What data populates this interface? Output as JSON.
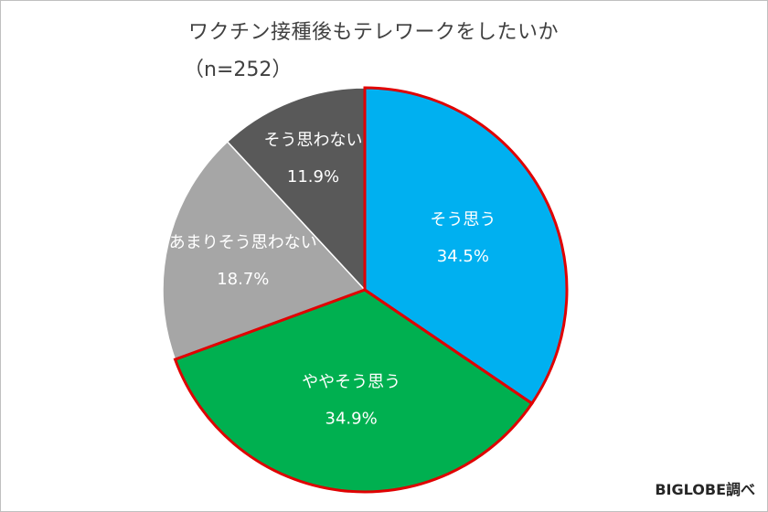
{
  "chart_data": {
    "type": "pie",
    "title": "ワクチン接種後もテレワークをしたいか",
    "subtitle": "（n=252）",
    "slices": [
      {
        "label": "そう思う",
        "value": 34.5,
        "value_label": "34.5%",
        "color": "#00b0f0",
        "highlighted": true
      },
      {
        "label": "ややそう思う",
        "value": 34.9,
        "value_label": "34.9%",
        "color": "#00b050",
        "highlighted": true
      },
      {
        "label": "あまりそう思わない",
        "value": 18.7,
        "value_label": "18.7%",
        "color": "#a6a6a6",
        "highlighted": false
      },
      {
        "label": "そう思わない",
        "value": 11.9,
        "value_label": "11.9%",
        "color": "#595959",
        "highlighted": false
      }
    ],
    "start_angle_deg": 0,
    "direction": "clockwise",
    "highlight_color": "#e00000",
    "legend": "none",
    "data_labels": "inside"
  },
  "source": "BIGLOBE調べ"
}
